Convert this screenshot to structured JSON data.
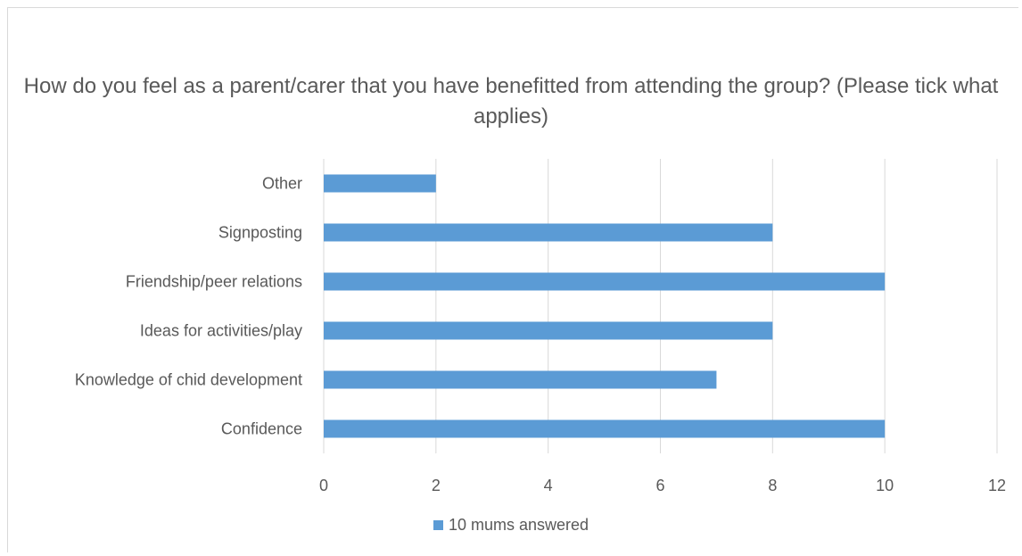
{
  "chart_data": {
    "type": "bar",
    "orientation": "horizontal",
    "title": "How do you feel as a parent/carer that you have benefitted from attending the group? (Please tick what applies)",
    "categories": [
      "Other",
      "Signposting",
      "Friendship/peer relations",
      "Ideas for activities/play",
      "Knowledge of chid development",
      "Confidence"
    ],
    "series": [
      {
        "name": "10 mums answered",
        "values": [
          2,
          8,
          10,
          8,
          7,
          10
        ]
      }
    ],
    "xlim": [
      0,
      12
    ],
    "xticks": [
      0,
      2,
      4,
      6,
      8,
      10,
      12
    ],
    "grid": "vertical",
    "legend": "bottom",
    "colors": {
      "bar": "#5b9bd5",
      "grid": "#d9d9d9",
      "text": "#595959"
    }
  }
}
